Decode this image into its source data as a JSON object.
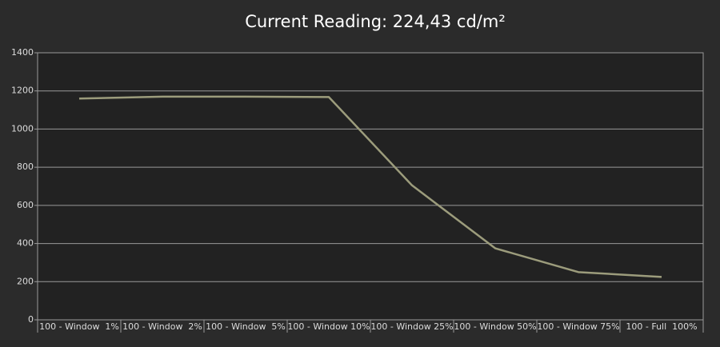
{
  "chart_data": {
    "type": "line",
    "title": "Current Reading: 224,43 cd/m²",
    "categories": [
      "100 - Window  1%",
      "100 - Window  2%",
      "100 - Window  5%",
      "100 - Window 10%",
      "100 - Window 25%",
      "100 - Window 50%",
      "100 - Window 75%",
      "100 - Full  100%"
    ],
    "values": [
      1160,
      1170,
      1170,
      1168,
      705,
      375,
      250,
      225
    ],
    "color": "#9c9c7c",
    "ylim": [
      0,
      1400
    ],
    "yticks": [
      0,
      200,
      400,
      600,
      800,
      1000,
      1200,
      1400
    ],
    "grid": true
  }
}
